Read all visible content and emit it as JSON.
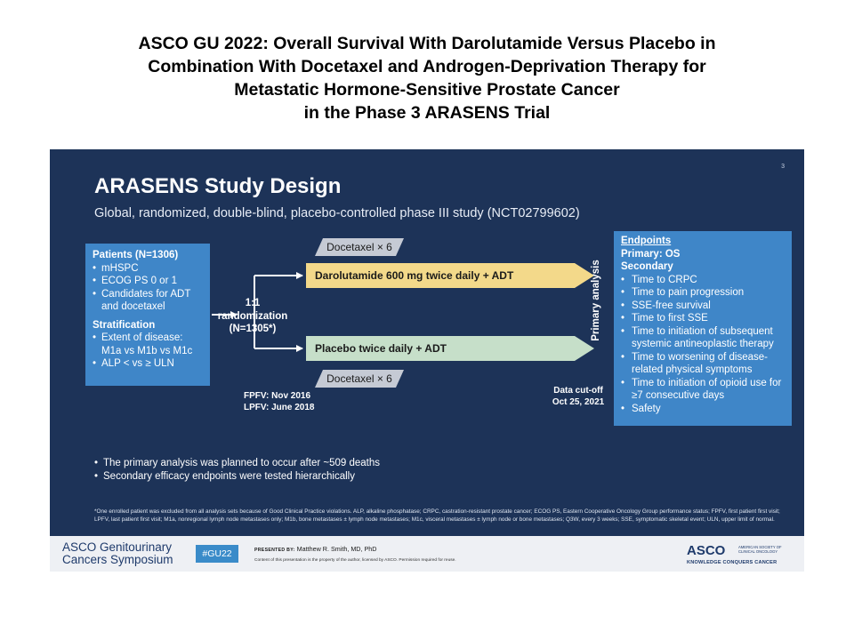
{
  "heading": [
    "ASCO GU 2022: Overall Survival With Darolutamide Versus Placebo in",
    "Combination With Docetaxel and Androgen-Deprivation Therapy for",
    "Metastatic Hormone-Sensitive Prostate Cancer",
    "in the Phase 3 ARASENS Trial"
  ],
  "slide": {
    "number": "3",
    "title": "ARASENS Study Design",
    "subtitle": "Global, randomized, double-blind, placebo-controlled phase III study (NCT02799602)",
    "patients": {
      "heading": "Patients (N=1306)",
      "items": [
        "mHSPC",
        "ECOG PS 0 or 1",
        "Candidates for ADT and docetaxel"
      ],
      "stratification_heading": "Stratification",
      "stratification_items": [
        "Extent of disease: M1a vs M1b vs M1c",
        "ALP < vs ≥ ULN"
      ]
    },
    "randomization": [
      "1:1",
      "randomization",
      "(N=1305*)"
    ],
    "arms": {
      "darolutamide": "Darolutamide 600 mg twice daily + ADT",
      "placebo": "Placebo twice daily + ADT",
      "docetaxel": "Docetaxel × 6"
    },
    "dates": [
      "FPFV: Nov 2016",
      "LPFV: June 2018"
    ],
    "cutoff": [
      "Data cut-off",
      "Oct 25, 2021"
    ],
    "primary_analysis": "Primary analysis",
    "endpoints": {
      "heading": "Endpoints",
      "primary": "Primary: OS",
      "secondary_heading": "Secondary",
      "items": [
        "Time to CRPC",
        "Time to pain progression",
        "SSE-free survival",
        "Time to first SSE",
        "Time to initiation of subsequent systemic antineoplastic therapy",
        "Time to worsening of disease-related physical symptoms",
        "Time to initiation of opioid use for ≥7 consecutive days",
        "Safety"
      ]
    },
    "bottom_bullets": [
      "The primary analysis was planned to occur after ~509 deaths",
      "Secondary efficacy endpoints were tested hierarchically"
    ],
    "footnote": "*One enrolled patient was excluded from all analysis sets because of Good Clinical Practice violations. ALP, alkaline phosphatase; CRPC, castration-resistant prostate cancer; ECOG PS, Eastern Cooperative Oncology Group performance status; FPFV, first patient first visit; LPFV, last patient first visit; M1a, nonregional lymph node metastases only; M1b, bone metastases ± lymph node metastases; M1c, visceral metastases ± lymph node or bone metastases; Q3W, every 3 weeks; SSE, symptomatic skeletal event; ULN, upper limit of normal."
  },
  "footer": {
    "gu_logo_top": "ASCO Genitourinary",
    "gu_logo_bottom": "Cancers Symposium",
    "badge": "#GU22",
    "presented_label": "PRESENTED BY:",
    "presenter": "Matthew R. Smith, MD, PhD",
    "copyright": "Content of this presentation is the property of the author, licensed by ASCO. Permission required for reuse.",
    "asco_word": "ASCO",
    "asco_society": "AMERICAN SOCIETY OF CLINICAL ONCOLOGY",
    "asco_motto": "KNOWLEDGE CONQUERS CANCER"
  }
}
